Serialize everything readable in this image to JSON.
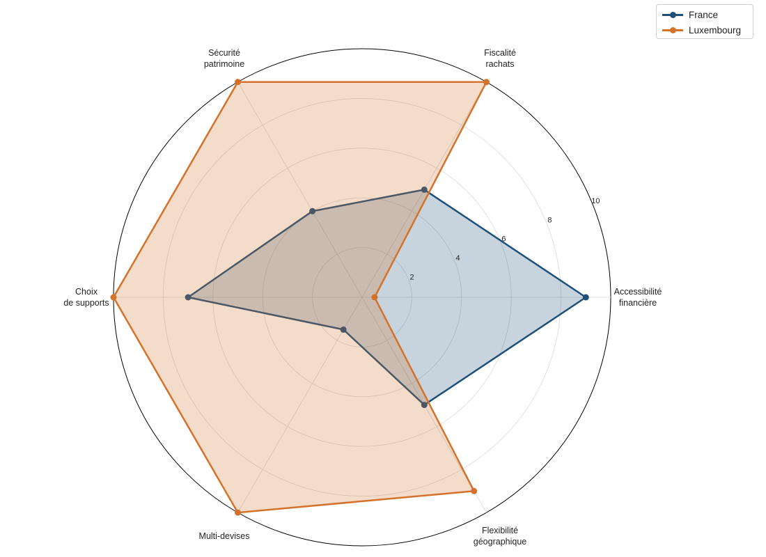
{
  "chart_data": {
    "type": "radar",
    "title": "",
    "categories": [
      [
        "Accessibilité",
        "financière"
      ],
      [
        "Fiscalité",
        "rachats"
      ],
      [
        "Sécurité",
        "patrimoine"
      ],
      [
        "Choix",
        "de supports"
      ],
      [
        "Multi-devises"
      ],
      [
        "Flexibilité",
        "géographique"
      ]
    ],
    "r_ticks": [
      2,
      4,
      6,
      8,
      10
    ],
    "r_max": 10,
    "grid": true,
    "legend_position": "top-right",
    "series": [
      {
        "name": "France",
        "color": "#1f4e79",
        "values": [
          9,
          5,
          4,
          7,
          1.5,
          5
        ]
      },
      {
        "name": "Luxembourg",
        "color": "#d4722b",
        "values": [
          0.5,
          10,
          10,
          10,
          10,
          9
        ]
      }
    ]
  },
  "legend": {
    "items": [
      {
        "label": "France",
        "color": "#1f4e79"
      },
      {
        "label": "Luxembourg",
        "color": "#d4722b"
      }
    ]
  }
}
